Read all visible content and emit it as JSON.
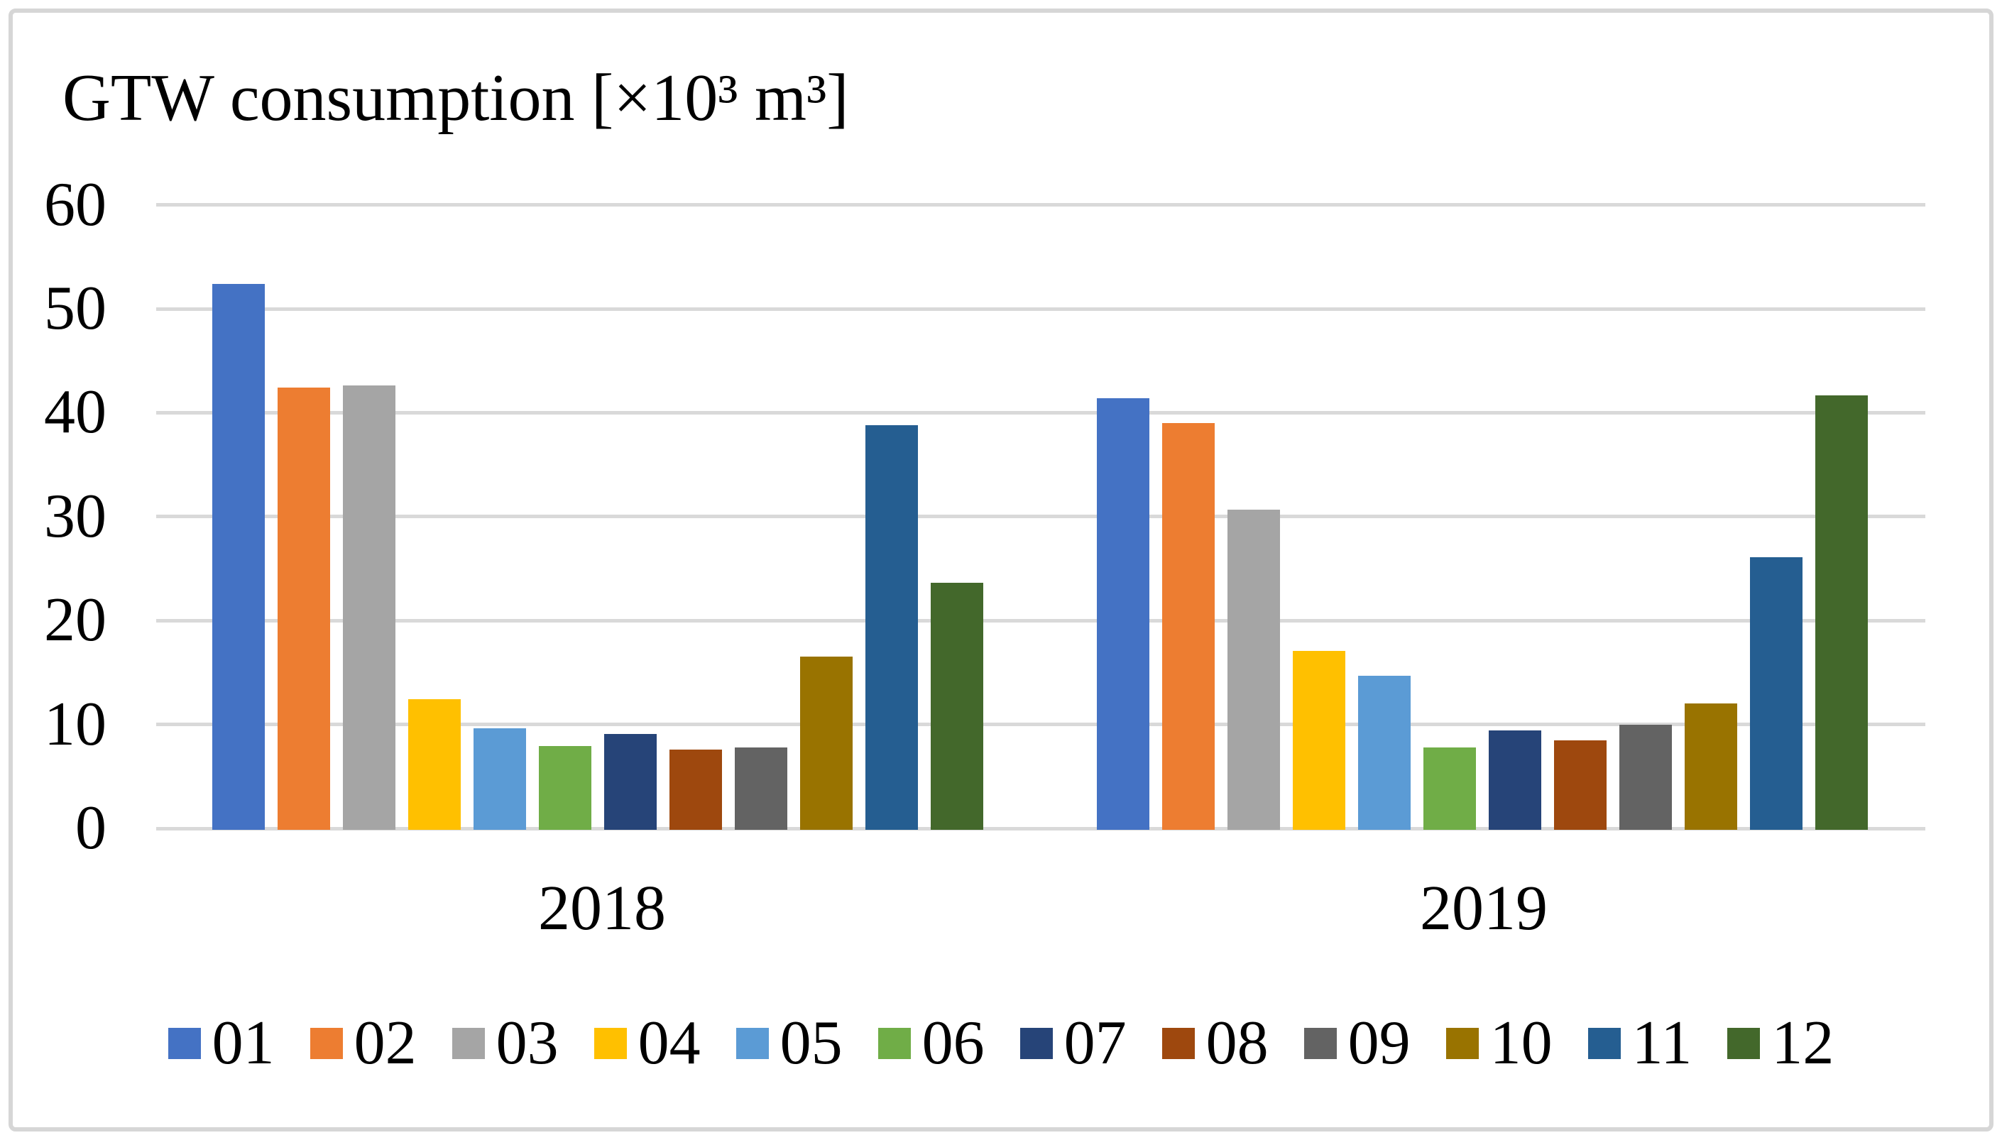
{
  "chart_data": {
    "type": "bar",
    "title": "GTW consumption [×10³ m³]",
    "categories": [
      "2018",
      "2019"
    ],
    "series": [
      {
        "name": "01",
        "color": "#4472C4",
        "values": [
          52.4,
          41.4
        ]
      },
      {
        "name": "02",
        "color": "#ED7D31",
        "values": [
          42.4,
          39.0
        ]
      },
      {
        "name": "03",
        "color": "#A5A5A5",
        "values": [
          42.6,
          30.7
        ]
      },
      {
        "name": "04",
        "color": "#FFC000",
        "values": [
          12.4,
          17.1
        ]
      },
      {
        "name": "05",
        "color": "#5B9BD5",
        "values": [
          9.6,
          14.7
        ]
      },
      {
        "name": "06",
        "color": "#70AD47",
        "values": [
          7.9,
          7.8
        ]
      },
      {
        "name": "07",
        "color": "#264478",
        "values": [
          9.1,
          9.4
        ]
      },
      {
        "name": "08",
        "color": "#9E480E",
        "values": [
          7.6,
          8.5
        ]
      },
      {
        "name": "09",
        "color": "#636363",
        "values": [
          7.8,
          10.0
        ]
      },
      {
        "name": "10",
        "color": "#997300",
        "values": [
          16.5,
          12.0
        ]
      },
      {
        "name": "11",
        "color": "#255E91",
        "values": [
          38.8,
          26.1
        ]
      },
      {
        "name": "12",
        "color": "#43682B",
        "values": [
          23.6,
          41.7
        ]
      }
    ],
    "ylim": [
      0,
      60
    ],
    "yticks": [
      0,
      10,
      20,
      30,
      40,
      50,
      60
    ],
    "grid": true,
    "legend_position": "bottom",
    "gridline_color": "#D9D9D9",
    "border_color": "#D6D6D6",
    "text_color": "#000000"
  }
}
